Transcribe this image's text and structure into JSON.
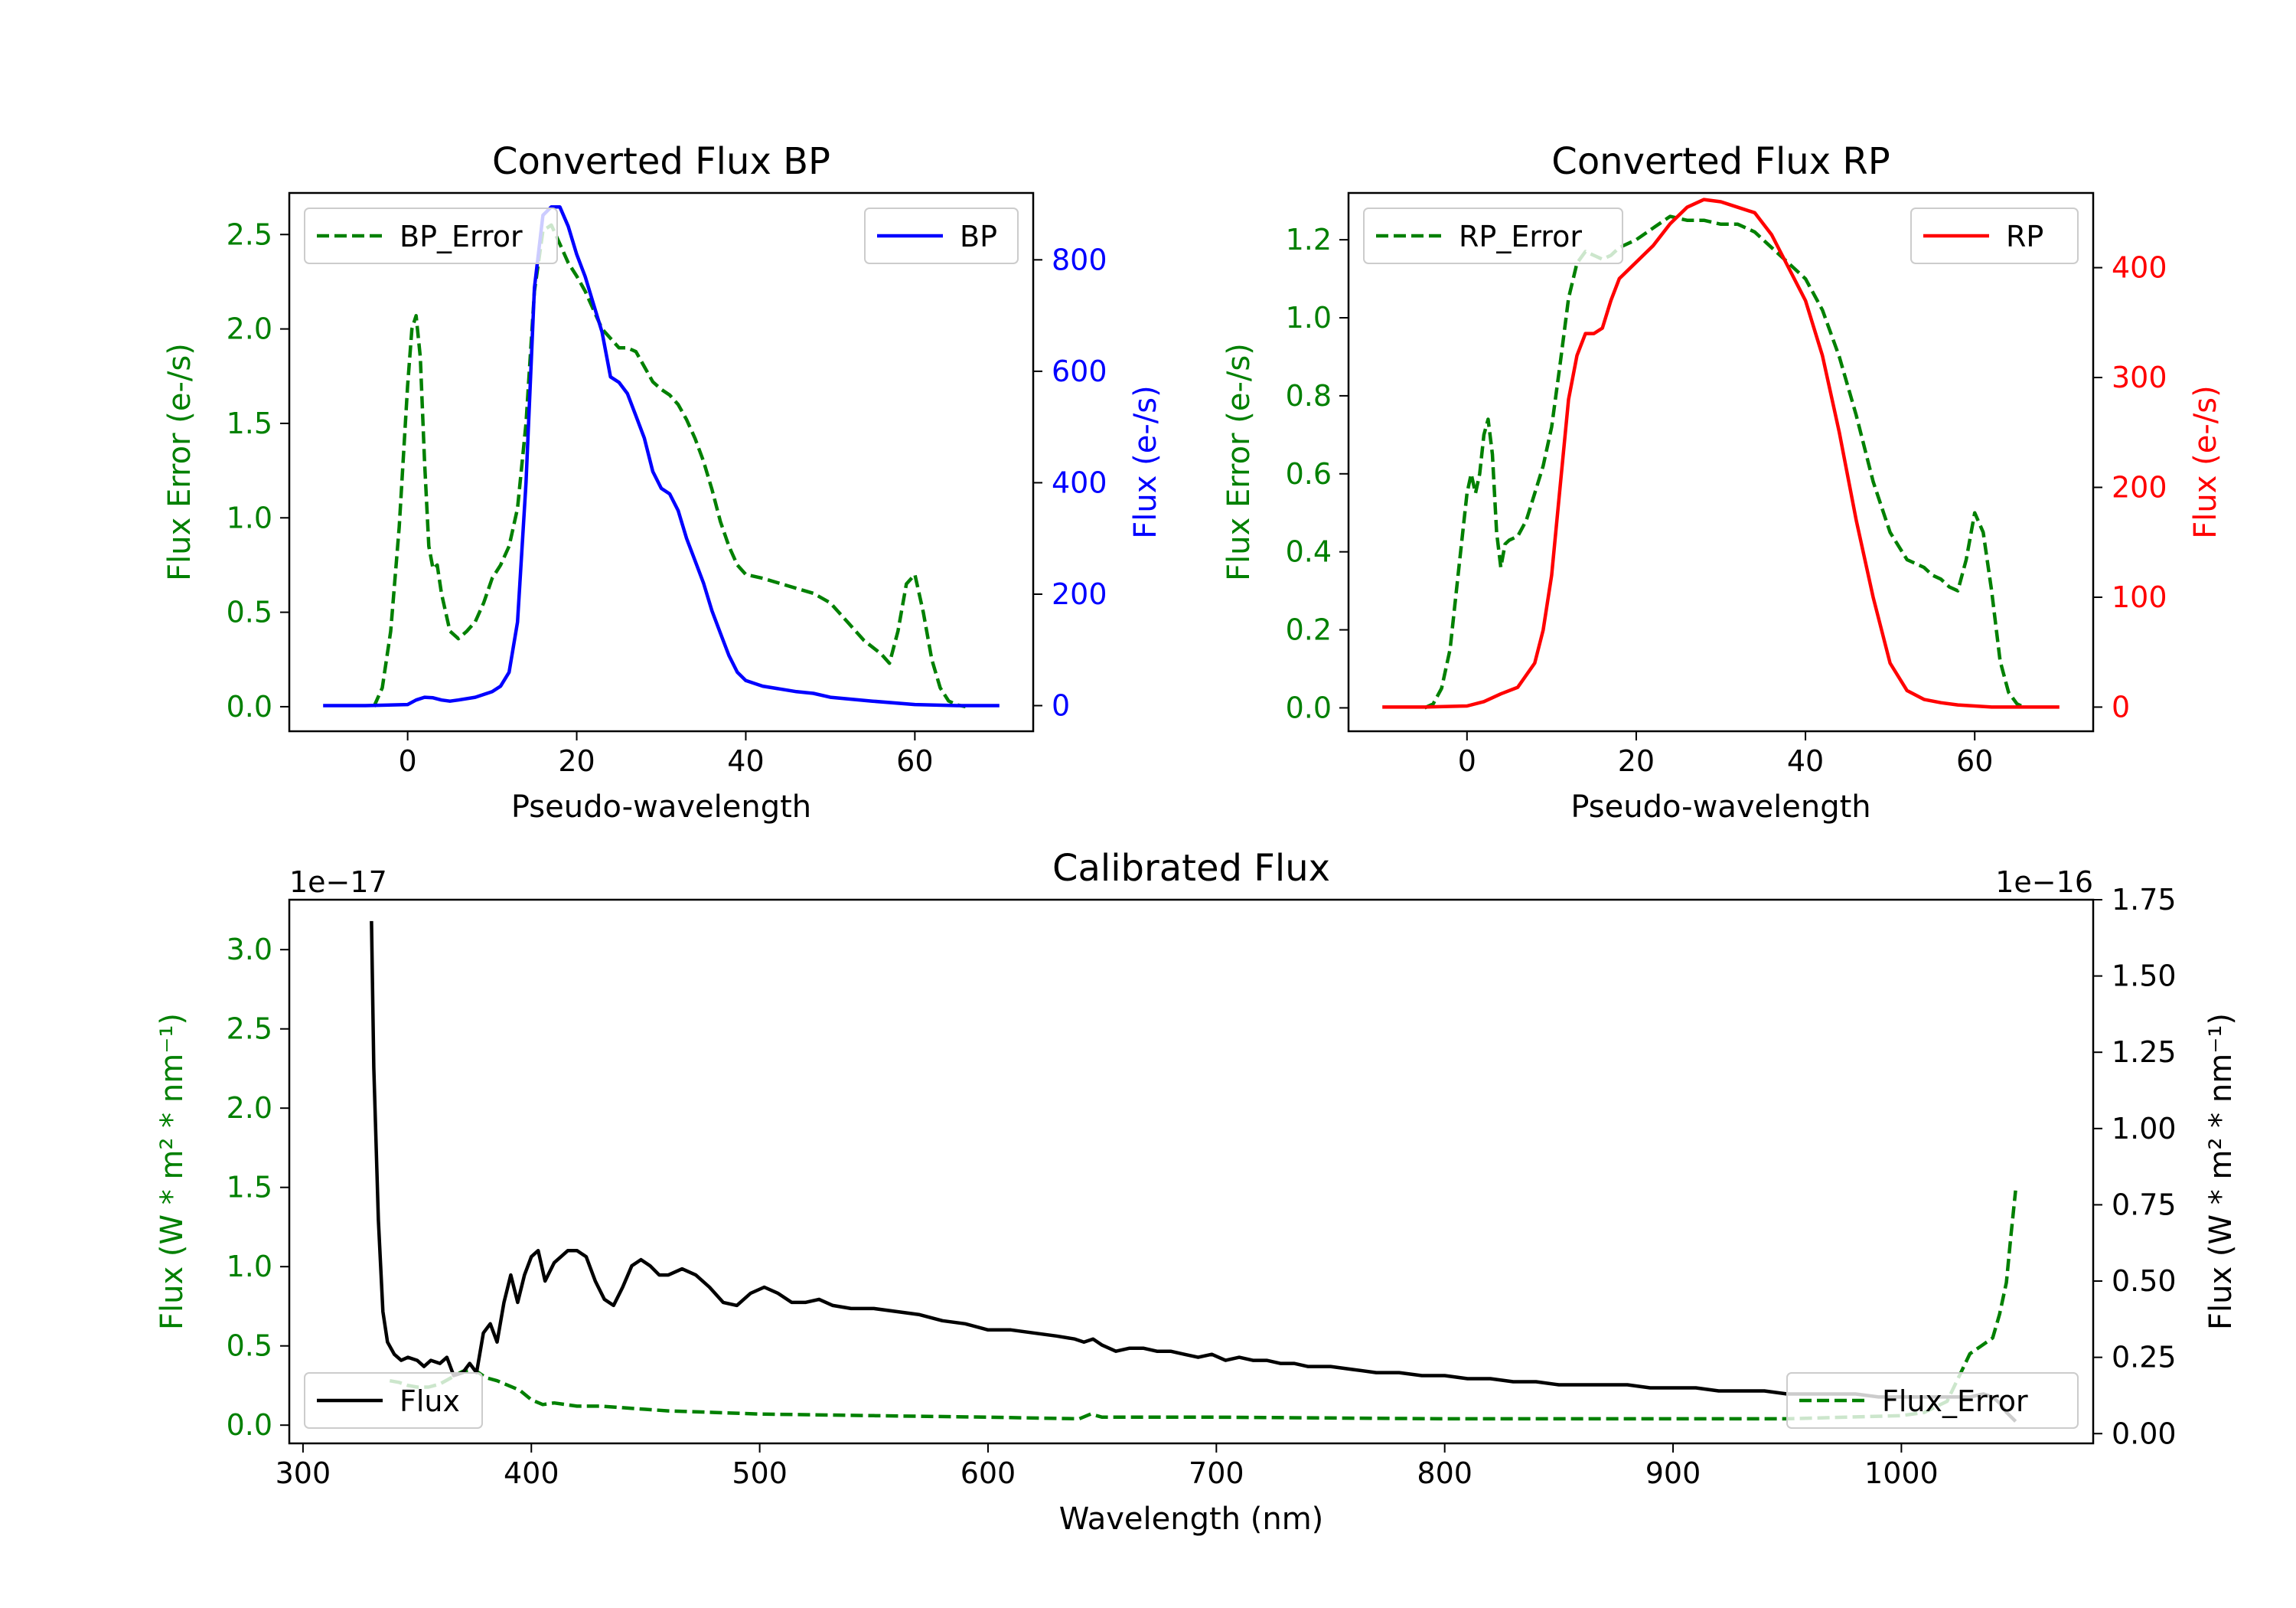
{
  "colors": {
    "green": "#008000",
    "blue": "#0000ff",
    "red": "#ff0000",
    "black": "#000000"
  },
  "chart_data": [
    {
      "id": "bp",
      "type": "line",
      "title": "Converted Flux BP",
      "xlabel": "Pseudo-wavelength",
      "ylabel_left": "Flux Error (e-/s)",
      "ylabel_right": "Flux (e-/s)",
      "xlim": [
        -14,
        74
      ],
      "ylim_left": [
        -0.13,
        2.72
      ],
      "ylim_right": [
        -46,
        920
      ],
      "xticks": [
        0,
        20,
        40,
        60
      ],
      "yticks_left": [
        0.0,
        0.5,
        1.0,
        1.5,
        2.0,
        2.5
      ],
      "yticks_right": [
        0,
        200,
        400,
        600,
        800
      ],
      "legend_left": "BP_Error",
      "legend_right": "BP",
      "series": [
        {
          "name": "BP_Error",
          "axis": "left",
          "color": "#008000",
          "dashed": true,
          "x": [
            -4,
            -3,
            -2,
            -1,
            0,
            0.5,
            1,
            1.5,
            2,
            2.5,
            3,
            3.5,
            4,
            5,
            6,
            7,
            8,
            9,
            10,
            11,
            12,
            13,
            14,
            15,
            16,
            17,
            18,
            19,
            20,
            21,
            22,
            23,
            24,
            25,
            26,
            27,
            28,
            29,
            30,
            31,
            32,
            33,
            34,
            35,
            36,
            37,
            38,
            39,
            40,
            42,
            45,
            48,
            50,
            52,
            54,
            56,
            57,
            58,
            59,
            60,
            61,
            62,
            63,
            64,
            65,
            66
          ],
          "values": [
            0.0,
            0.1,
            0.4,
            0.95,
            1.7,
            2.0,
            2.07,
            1.85,
            1.3,
            0.85,
            0.73,
            0.75,
            0.6,
            0.4,
            0.36,
            0.4,
            0.45,
            0.55,
            0.68,
            0.75,
            0.85,
            1.05,
            1.5,
            2.2,
            2.52,
            2.55,
            2.45,
            2.35,
            2.28,
            2.2,
            2.1,
            2.0,
            1.95,
            1.9,
            1.9,
            1.88,
            1.8,
            1.72,
            1.68,
            1.65,
            1.6,
            1.52,
            1.42,
            1.3,
            1.15,
            0.98,
            0.85,
            0.75,
            0.7,
            0.68,
            0.64,
            0.6,
            0.55,
            0.45,
            0.35,
            0.28,
            0.23,
            0.4,
            0.65,
            0.7,
            0.5,
            0.25,
            0.1,
            0.03,
            0.01,
            0.0
          ]
        },
        {
          "name": "BP",
          "axis": "right",
          "color": "#0000ff",
          "dashed": false,
          "x": [
            -10,
            -5,
            0,
            1,
            2,
            3,
            4,
            5,
            6,
            8,
            10,
            11,
            12,
            13,
            14,
            15,
            16,
            17,
            18,
            19,
            20,
            21,
            22,
            23,
            24,
            25,
            26,
            27,
            28,
            29,
            30,
            31,
            32,
            33,
            34,
            35,
            36,
            37,
            38,
            39,
            40,
            42,
            44,
            46,
            48,
            50,
            55,
            60,
            65,
            70
          ],
          "values": [
            0,
            0,
            2,
            10,
            15,
            14,
            10,
            8,
            10,
            15,
            25,
            35,
            60,
            150,
            400,
            750,
            880,
            895,
            895,
            860,
            810,
            770,
            720,
            670,
            590,
            580,
            560,
            520,
            480,
            420,
            390,
            380,
            350,
            300,
            260,
            220,
            170,
            130,
            90,
            60,
            45,
            35,
            30,
            25,
            22,
            15,
            8,
            2,
            0,
            0
          ]
        }
      ]
    },
    {
      "id": "rp",
      "type": "line",
      "title": "Converted Flux RP",
      "xlabel": "Pseudo-wavelength",
      "ylabel_left": "Flux Error (e-/s)",
      "ylabel_right": "Flux (e-/s)",
      "xlim": [
        -14,
        74
      ],
      "ylim_left": [
        -0.06,
        1.32
      ],
      "ylim_right": [
        -22,
        468
      ],
      "xticks": [
        0,
        20,
        40,
        60
      ],
      "yticks_left": [
        0.0,
        0.2,
        0.4,
        0.6,
        0.8,
        1.0,
        1.2
      ],
      "yticks_right": [
        0,
        100,
        200,
        300,
        400
      ],
      "legend_left": "RP_Error",
      "legend_right": "RP",
      "series": [
        {
          "name": "RP_Error",
          "axis": "left",
          "color": "#008000",
          "dashed": true,
          "x": [
            -5,
            -4,
            -3,
            -2,
            -1,
            0,
            0.5,
            1,
            1.5,
            2,
            2.5,
            3,
            3.5,
            4,
            4.5,
            5,
            6,
            7,
            8,
            9,
            10,
            11,
            12,
            13,
            14,
            15,
            16,
            17,
            18,
            20,
            22,
            24,
            26,
            28,
            30,
            32,
            34,
            36,
            38,
            40,
            42,
            44,
            46,
            48,
            50,
            52,
            54,
            55,
            56,
            57,
            58,
            59,
            60,
            61,
            62,
            63,
            64,
            65,
            66
          ],
          "values": [
            0.0,
            0.01,
            0.05,
            0.15,
            0.35,
            0.55,
            0.6,
            0.55,
            0.6,
            0.7,
            0.74,
            0.65,
            0.45,
            0.36,
            0.42,
            0.43,
            0.44,
            0.48,
            0.55,
            0.62,
            0.72,
            0.88,
            1.05,
            1.14,
            1.17,
            1.16,
            1.15,
            1.16,
            1.18,
            1.2,
            1.23,
            1.26,
            1.25,
            1.25,
            1.24,
            1.24,
            1.22,
            1.18,
            1.14,
            1.1,
            1.02,
            0.9,
            0.75,
            0.58,
            0.45,
            0.38,
            0.36,
            0.34,
            0.33,
            0.31,
            0.3,
            0.38,
            0.5,
            0.45,
            0.3,
            0.12,
            0.04,
            0.01,
            0.0
          ]
        },
        {
          "name": "RP",
          "axis": "right",
          "color": "#ff0000",
          "dashed": false,
          "x": [
            -10,
            -5,
            0,
            2,
            4,
            6,
            8,
            9,
            10,
            11,
            12,
            13,
            14,
            15,
            16,
            17,
            18,
            20,
            22,
            24,
            26,
            28,
            30,
            32,
            34,
            36,
            38,
            40,
            42,
            44,
            46,
            48,
            50,
            52,
            54,
            56,
            58,
            60,
            62,
            65,
            70
          ],
          "values": [
            0,
            0,
            1,
            5,
            12,
            18,
            40,
            70,
            120,
            200,
            280,
            320,
            340,
            340,
            345,
            370,
            390,
            405,
            420,
            440,
            455,
            462,
            460,
            455,
            450,
            430,
            400,
            370,
            320,
            250,
            170,
            100,
            40,
            15,
            7,
            4,
            2,
            1,
            0,
            0,
            0
          ]
        }
      ]
    },
    {
      "id": "calibrated",
      "type": "line",
      "title": "Calibrated Flux",
      "xlabel": "Wavelength (nm)",
      "ylabel_left": "Flux (W * m² * nm⁻¹)",
      "ylabel_right": "Flux (W * m² * nm⁻¹)",
      "offset_left": "1e−17",
      "offset_right": "1e−16",
      "xlim": [
        294,
        1084
      ],
      "ylim_left": [
        -0.115,
        3.315
      ],
      "ylim_right": [
        -0.032,
        1.75
      ],
      "xticks": [
        300,
        400,
        500,
        600,
        700,
        800,
        900,
        1000
      ],
      "yticks_left": [
        "0.0",
        "0.5",
        "1.0",
        "1.5",
        "2.0",
        "2.5",
        "3.0"
      ],
      "yticks_right": [
        "0.00",
        "0.25",
        "0.50",
        "0.75",
        "1.00",
        "1.25",
        "1.50",
        "1.75"
      ],
      "legend_left": "Flux",
      "legend_right": "Flux_Error",
      "series": [
        {
          "name": "Flux_Error",
          "axis": "left",
          "color": "#008000",
          "dashed": true,
          "x": [
            338,
            342,
            346,
            350,
            355,
            360,
            365,
            370,
            375,
            380,
            385,
            390,
            395,
            400,
            405,
            410,
            420,
            430,
            440,
            450,
            460,
            480,
            500,
            550,
            600,
            640,
            645,
            650,
            700,
            800,
            900,
            950,
            1000,
            1010,
            1020,
            1025,
            1030,
            1035,
            1040,
            1043,
            1046,
            1048,
            1050
          ],
          "values": [
            0.28,
            0.27,
            0.25,
            0.24,
            0.24,
            0.26,
            0.3,
            0.34,
            0.35,
            0.3,
            0.28,
            0.25,
            0.22,
            0.16,
            0.13,
            0.14,
            0.12,
            0.12,
            0.11,
            0.1,
            0.09,
            0.08,
            0.07,
            0.06,
            0.05,
            0.04,
            0.07,
            0.05,
            0.05,
            0.04,
            0.04,
            0.04,
            0.06,
            0.08,
            0.15,
            0.3,
            0.45,
            0.5,
            0.55,
            0.7,
            0.9,
            1.2,
            1.48
          ]
        },
        {
          "name": "Flux",
          "axis": "right",
          "color": "#000000",
          "dashed": false,
          "x": [
            330,
            331,
            333,
            335,
            337,
            340,
            343,
            346,
            350,
            353,
            356,
            360,
            363,
            366,
            370,
            373,
            376,
            379,
            382,
            385,
            388,
            391,
            394,
            397,
            400,
            403,
            406,
            410,
            413,
            416,
            420,
            424,
            428,
            432,
            436,
            440,
            444,
            448,
            452,
            456,
            460,
            466,
            472,
            478,
            484,
            490,
            496,
            502,
            508,
            514,
            520,
            526,
            532,
            540,
            550,
            560,
            570,
            580,
            590,
            600,
            610,
            620,
            630,
            638,
            642,
            646,
            650,
            656,
            662,
            668,
            674,
            680,
            686,
            692,
            698,
            704,
            710,
            716,
            722,
            728,
            734,
            740,
            750,
            760,
            770,
            780,
            790,
            800,
            810,
            820,
            830,
            840,
            850,
            860,
            870,
            880,
            890,
            900,
            910,
            920,
            930,
            940,
            950,
            960,
            970,
            980,
            990,
            1000,
            1010,
            1020,
            1030,
            1036,
            1040,
            1043,
            1046,
            1050
          ],
          "values": [
            1.68,
            1.2,
            0.7,
            0.4,
            0.3,
            0.26,
            0.24,
            0.25,
            0.24,
            0.22,
            0.24,
            0.23,
            0.25,
            0.19,
            0.2,
            0.23,
            0.2,
            0.33,
            0.36,
            0.3,
            0.43,
            0.52,
            0.43,
            0.52,
            0.58,
            0.6,
            0.5,
            0.56,
            0.58,
            0.6,
            0.6,
            0.58,
            0.5,
            0.44,
            0.42,
            0.48,
            0.55,
            0.57,
            0.55,
            0.52,
            0.52,
            0.54,
            0.52,
            0.48,
            0.43,
            0.42,
            0.46,
            0.48,
            0.46,
            0.43,
            0.43,
            0.44,
            0.42,
            0.41,
            0.41,
            0.4,
            0.39,
            0.37,
            0.36,
            0.34,
            0.34,
            0.33,
            0.32,
            0.31,
            0.3,
            0.31,
            0.29,
            0.27,
            0.28,
            0.28,
            0.27,
            0.27,
            0.26,
            0.25,
            0.26,
            0.24,
            0.25,
            0.24,
            0.24,
            0.23,
            0.23,
            0.22,
            0.22,
            0.21,
            0.2,
            0.2,
            0.19,
            0.19,
            0.18,
            0.18,
            0.17,
            0.17,
            0.16,
            0.16,
            0.16,
            0.16,
            0.15,
            0.15,
            0.15,
            0.14,
            0.14,
            0.14,
            0.13,
            0.13,
            0.13,
            0.13,
            0.12,
            0.12,
            0.12,
            0.12,
            0.12,
            0.13,
            0.12,
            0.1,
            0.07,
            0.04
          ]
        }
      ]
    }
  ]
}
